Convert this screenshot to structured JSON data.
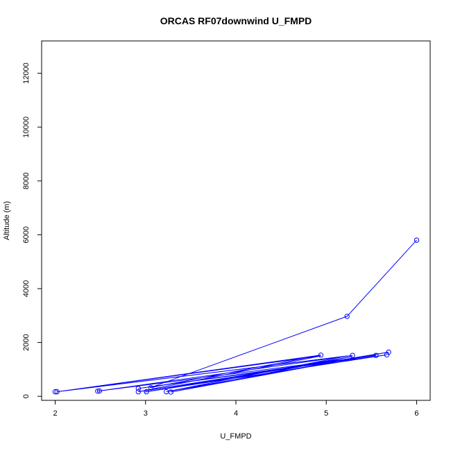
{
  "chart_data": {
    "type": "line",
    "title": "ORCAS RF07downwind U_FMPD",
    "xlabel": "U_FMPD",
    "ylabel": "Altitude (m)",
    "xlim": [
      1.85,
      6.15
    ],
    "ylim": [
      -150,
      13200
    ],
    "xticks": [
      2,
      3,
      4,
      5,
      6
    ],
    "yticks": [
      0,
      2000,
      4000,
      6000,
      8000,
      10000,
      12000
    ],
    "grid": false,
    "color": "#0000ff",
    "series": [
      {
        "x": [
          6.0,
          5.23,
          3.05,
          4.94,
          2.02,
          5.29,
          2.47,
          5.55,
          2.92,
          5.67,
          3.01,
          5.69,
          3.23,
          5.23,
          2.02,
          4.94,
          2.92,
          5.55,
          3.28,
          5.29,
          2.99
        ],
        "y": [
          5800,
          2970,
          320,
          1530,
          170,
          1520,
          190,
          1520,
          290,
          1540,
          170,
          1640,
          170,
          1500,
          170,
          1500,
          170,
          1550,
          160,
          1480,
          160
        ]
      }
    ],
    "points": {
      "x": [
        6.0,
        5.23,
        4.94,
        5.29,
        5.55,
        5.67,
        5.69,
        2.0,
        2.02,
        2.47,
        2.49,
        2.92,
        2.92,
        3.01,
        3.06,
        3.23,
        3.28
      ],
      "y": [
        5800,
        2970,
        1530,
        1520,
        1520,
        1540,
        1640,
        170,
        170,
        190,
        200,
        290,
        170,
        170,
        320,
        170,
        160
      ]
    }
  }
}
